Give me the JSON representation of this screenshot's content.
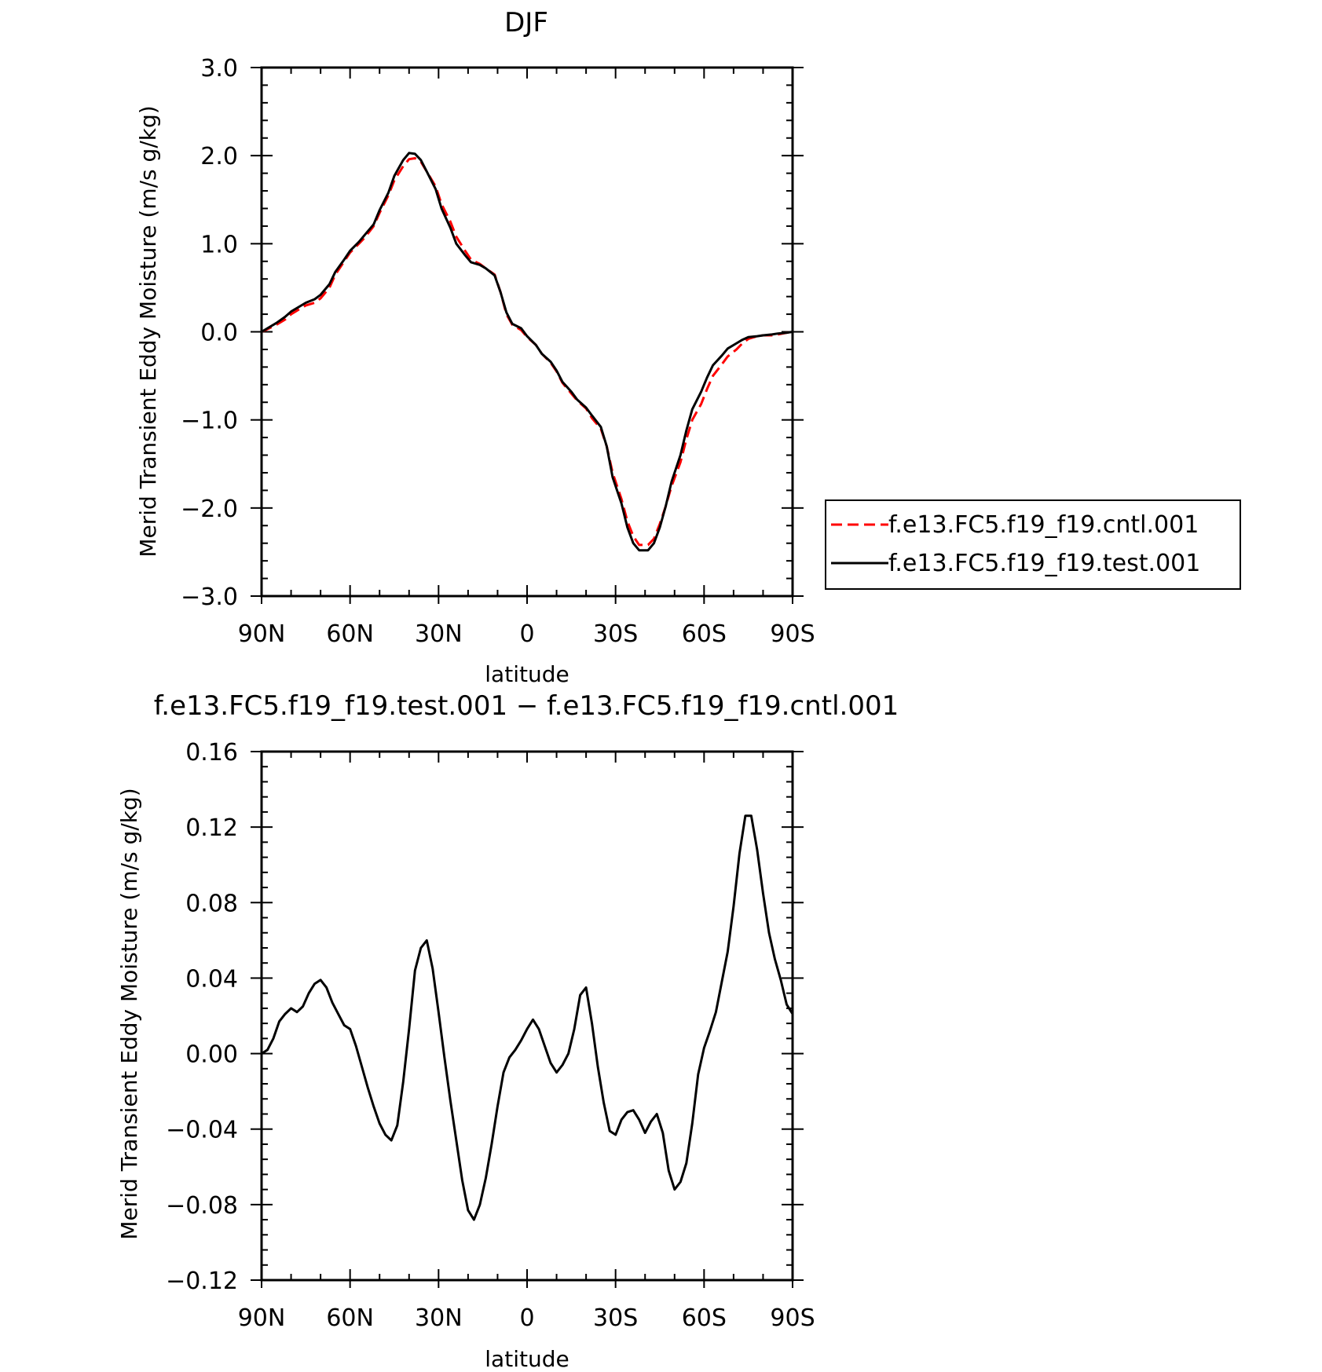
{
  "chart_data": [
    {
      "type": "line",
      "title": "DJF",
      "xlabel": "latitude",
      "ylabel": "Merid Transient Eddy Moisture (m/s g/kg)",
      "xlim": [
        90,
        -90
      ],
      "ylim": [
        -3.0,
        3.0
      ],
      "xticks": [
        90,
        60,
        30,
        0,
        -30,
        -60,
        -90
      ],
      "xtick_labels": [
        "90N",
        "60N",
        "30N",
        "0",
        "30S",
        "60S",
        "90S"
      ],
      "yticks": [
        -3.0,
        -2.0,
        -1.0,
        0.0,
        1.0,
        2.0,
        3.0
      ],
      "ytick_labels": [
        "−3.0",
        "−2.0",
        "−1.0",
        "0.0",
        "1.0",
        "2.0",
        "3.0"
      ],
      "legend_position": "right",
      "series": [
        {
          "name": "f.e13.FC5.f19_f19.cntl.001",
          "color": "#ff0000",
          "dash": "dashed",
          "x": [
            90,
            88,
            85,
            82,
            80,
            77,
            75,
            72,
            70,
            67,
            65,
            62,
            60,
            57,
            55,
            52,
            50,
            47,
            45,
            42,
            40,
            38,
            36,
            34,
            31,
            29,
            26,
            24,
            21,
            19,
            16,
            14,
            11,
            9,
            7,
            5,
            2,
            0,
            -3,
            -5,
            -8,
            -10,
            -12,
            -15,
            -17,
            -20,
            -22,
            -25,
            -27,
            -29,
            -32,
            -34,
            -36,
            -38,
            -41,
            -43,
            -45,
            -47,
            -49,
            -52,
            -54,
            -56,
            -59,
            -61,
            -63,
            -66,
            -68,
            -71,
            -73,
            -75,
            -78,
            -80,
            -83,
            -85,
            -88,
            -90
          ],
          "y": [
            0.0,
            0.03,
            0.08,
            0.14,
            0.2,
            0.26,
            0.3,
            0.33,
            0.38,
            0.5,
            0.65,
            0.8,
            0.9,
            1.0,
            1.07,
            1.2,
            1.35,
            1.55,
            1.72,
            1.88,
            1.96,
            1.97,
            1.93,
            1.82,
            1.65,
            1.45,
            1.25,
            1.08,
            0.92,
            0.82,
            0.77,
            0.72,
            0.65,
            0.45,
            0.2,
            0.08,
            0.02,
            -0.06,
            -0.15,
            -0.25,
            -0.35,
            -0.45,
            -0.58,
            -0.7,
            -0.78,
            -0.87,
            -0.98,
            -1.1,
            -1.3,
            -1.6,
            -1.9,
            -2.15,
            -2.32,
            -2.42,
            -2.42,
            -2.35,
            -2.18,
            -1.98,
            -1.75,
            -1.48,
            -1.22,
            -1.0,
            -0.82,
            -0.65,
            -0.5,
            -0.37,
            -0.28,
            -0.2,
            -0.13,
            -0.08,
            -0.05,
            -0.04,
            -0.04,
            -0.03,
            -0.01,
            0.0
          ]
        },
        {
          "name": "f.e13.FC5.f19_f19.test.001",
          "color": "#000000",
          "dash": "solid",
          "x": [
            90,
            88,
            85,
            82,
            80,
            77,
            75,
            72,
            70,
            67,
            65,
            62,
            60,
            57,
            55,
            52,
            50,
            47,
            45,
            42,
            40,
            38,
            36,
            34,
            31,
            29,
            26,
            24,
            21,
            19,
            16,
            14,
            11,
            9,
            7,
            5,
            2,
            0,
            -3,
            -5,
            -8,
            -10,
            -12,
            -15,
            -17,
            -20,
            -22,
            -25,
            -27,
            -29,
            -32,
            -34,
            -36,
            -38,
            -41,
            -43,
            -45,
            -47,
            -49,
            -52,
            -54,
            -56,
            -59,
            -61,
            -63,
            -66,
            -68,
            -71,
            -73,
            -75,
            -78,
            -80,
            -83,
            -85,
            -88,
            -90
          ],
          "y": [
            0.0,
            0.04,
            0.1,
            0.17,
            0.23,
            0.29,
            0.33,
            0.37,
            0.42,
            0.54,
            0.68,
            0.82,
            0.92,
            1.02,
            1.1,
            1.22,
            1.38,
            1.58,
            1.77,
            1.95,
            2.03,
            2.02,
            1.95,
            1.82,
            1.62,
            1.4,
            1.18,
            1.0,
            0.87,
            0.79,
            0.76,
            0.72,
            0.64,
            0.45,
            0.22,
            0.09,
            0.04,
            -0.05,
            -0.15,
            -0.25,
            -0.34,
            -0.44,
            -0.57,
            -0.68,
            -0.77,
            -0.86,
            -0.95,
            -1.08,
            -1.3,
            -1.65,
            -1.95,
            -2.22,
            -2.4,
            -2.48,
            -2.48,
            -2.4,
            -2.22,
            -1.98,
            -1.7,
            -1.4,
            -1.12,
            -0.88,
            -0.68,
            -0.52,
            -0.38,
            -0.27,
            -0.19,
            -0.13,
            -0.09,
            -0.06,
            -0.05,
            -0.04,
            -0.03,
            -0.02,
            -0.01,
            0.0
          ]
        }
      ]
    },
    {
      "type": "line",
      "title": "f.e13.FC5.f19_f19.test.001 − f.e13.FC5.f19_f19.cntl.001",
      "xlabel": "latitude",
      "ylabel": "Merid Transient Eddy Moisture (m/s g/kg)",
      "xlim": [
        90,
        -90
      ],
      "ylim": [
        -0.12,
        0.16
      ],
      "xticks": [
        90,
        60,
        30,
        0,
        -30,
        -60,
        -90
      ],
      "xtick_labels": [
        "90N",
        "60N",
        "30N",
        "0",
        "30S",
        "60S",
        "90S"
      ],
      "yticks": [
        -0.12,
        -0.08,
        -0.04,
        0.0,
        0.04,
        0.08,
        0.12,
        0.16
      ],
      "ytick_labels": [
        "−0.12",
        "−0.08",
        "−0.04",
        "0.00",
        "0.04",
        "0.08",
        "0.12",
        "0.16"
      ],
      "series": [
        {
          "color": "#000000",
          "dash": "solid",
          "x": [
            90,
            88,
            86,
            84,
            82,
            80,
            78,
            76,
            74,
            72,
            70,
            68,
            66,
            64,
            62,
            60,
            58,
            56,
            54,
            52,
            50,
            48,
            46,
            44,
            42,
            40,
            38,
            36,
            34,
            32,
            30,
            28,
            26,
            24,
            22,
            20,
            18,
            16,
            14,
            12,
            10,
            8,
            6,
            4,
            2,
            0,
            -2,
            -4,
            -6,
            -8,
            -10,
            -12,
            -14,
            -16,
            -18,
            -20,
            -22,
            -24,
            -26,
            -28,
            -30,
            -32,
            -34,
            -36,
            -38,
            -40,
            -42,
            -44,
            -46,
            -48,
            -50,
            -52,
            -54,
            -56,
            -58,
            -60,
            -62,
            -64,
            -66,
            -68,
            -70,
            -72,
            -74,
            -76,
            -78,
            -80,
            -82,
            -84,
            -86,
            -88,
            -90
          ],
          "y": [
            0.0,
            0.002,
            0.008,
            0.017,
            0.021,
            0.024,
            0.022,
            0.025,
            0.032,
            0.037,
            0.039,
            0.035,
            0.027,
            0.021,
            0.015,
            0.013,
            0.004,
            -0.007,
            -0.018,
            -0.028,
            -0.037,
            -0.043,
            -0.046,
            -0.038,
            -0.015,
            0.013,
            0.044,
            0.056,
            0.06,
            0.045,
            0.022,
            -0.002,
            -0.025,
            -0.046,
            -0.067,
            -0.083,
            -0.088,
            -0.08,
            -0.066,
            -0.048,
            -0.028,
            -0.01,
            -0.002,
            0.002,
            0.007,
            0.013,
            0.018,
            0.013,
            0.004,
            -0.005,
            -0.01,
            -0.006,
            0.0,
            0.013,
            0.031,
            0.035,
            0.016,
            -0.007,
            -0.026,
            -0.041,
            -0.043,
            -0.035,
            -0.031,
            -0.03,
            -0.035,
            -0.042,
            -0.036,
            -0.032,
            -0.042,
            -0.062,
            -0.072,
            -0.068,
            -0.058,
            -0.037,
            -0.011,
            0.003,
            0.012,
            0.022,
            0.038,
            0.054,
            0.078,
            0.106,
            0.126,
            0.126,
            0.108,
            0.085,
            0.064,
            0.05,
            0.039,
            0.026,
            0.021
          ]
        }
      ]
    }
  ]
}
